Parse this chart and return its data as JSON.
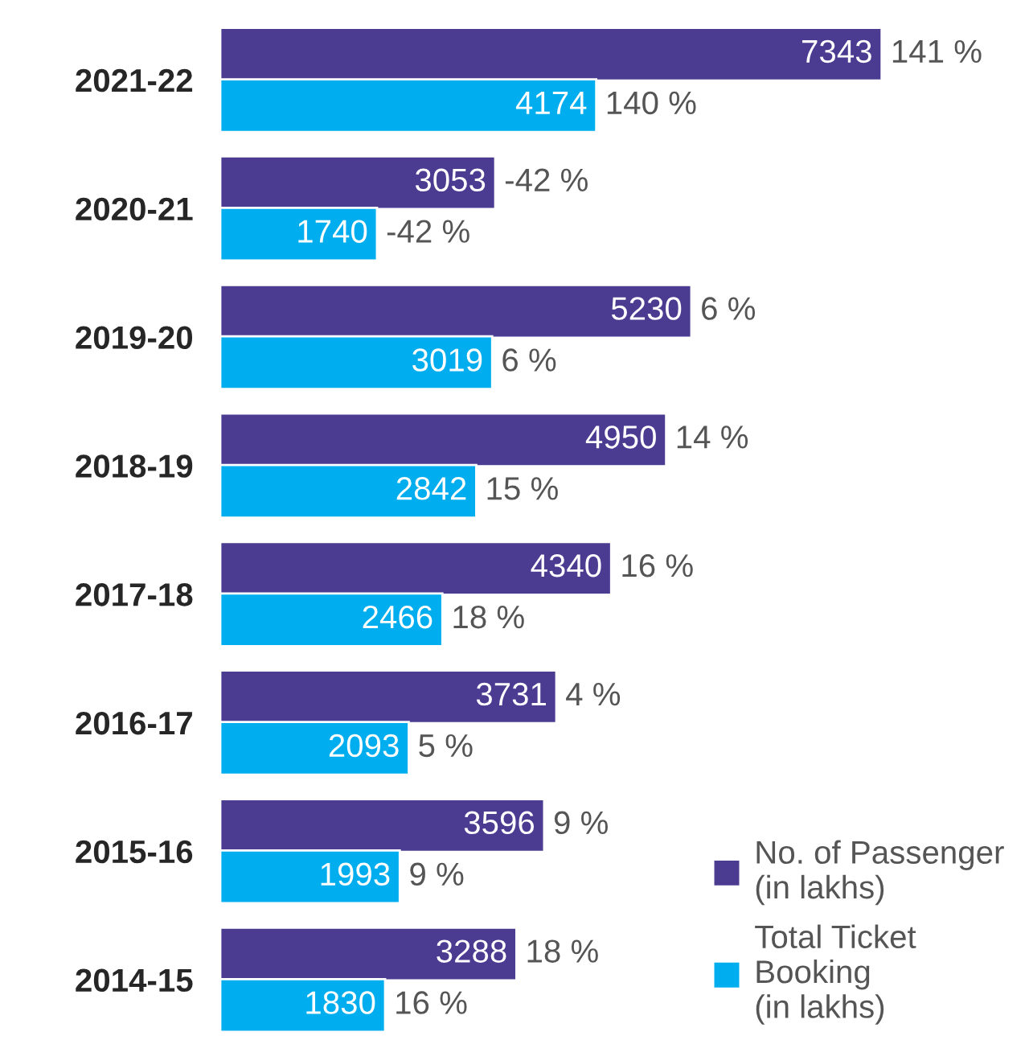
{
  "chart_data": {
    "type": "bar",
    "orientation": "horizontal",
    "data_labels": true,
    "legend": "bottom right",
    "categories": [
      "2021-22",
      "2020-21",
      "2019-20",
      "2018-19",
      "2017-18",
      "2016-17",
      "2015-16",
      "2014-15"
    ],
    "series": [
      {
        "name": "No. of Passenger\n(in lakhs)",
        "color": "#4b3c92",
        "values": [
          7343,
          3053,
          5230,
          4950,
          4340,
          3731,
          3596,
          3288
        ]
      },
      {
        "name": "Total Ticket\nBooking\n(in lakhs)",
        "color": "#00aeef",
        "values": [
          4174,
          1740,
          3019,
          2842,
          2466,
          2093,
          1993,
          1830
        ]
      }
    ],
    "annotations": [
      {
        "text": "141 %",
        "x": 7343,
        "y": "2021-22"
      },
      {
        "text": "140 %",
        "x": 4174,
        "y": "2021-22"
      },
      {
        "text": "-42 %",
        "x": 3053,
        "y": "2020-21"
      },
      {
        "text": "-42 %",
        "x": 1740,
        "y": "2020-21"
      },
      {
        "text": "6 %",
        "x": 5230,
        "y": "2019-20"
      },
      {
        "text": "6 %",
        "x": 3019,
        "y": "2019-20"
      },
      {
        "text": "14 %",
        "x": 4950,
        "y": "2018-19"
      },
      {
        "text": "15 %",
        "x": 2842,
        "y": "2018-19"
      },
      {
        "text": "16 %",
        "x": 4340,
        "y": "2017-18"
      },
      {
        "text": "18 %",
        "x": 2466,
        "y": "2017-18"
      },
      {
        "text": "4 %",
        "x": 3731,
        "y": "2016-17"
      },
      {
        "text": "5 %",
        "x": 2093,
        "y": "2016-17"
      },
      {
        "text": "9 %",
        "x": 3596,
        "y": "2015-16"
      },
      {
        "text": "9 %",
        "x": 1993,
        "y": "2015-16"
      },
      {
        "text": "18 %",
        "x": 3288,
        "y": "2014-15"
      },
      {
        "text": "16 %",
        "x": 1830,
        "y": "2014-15"
      }
    ]
  }
}
